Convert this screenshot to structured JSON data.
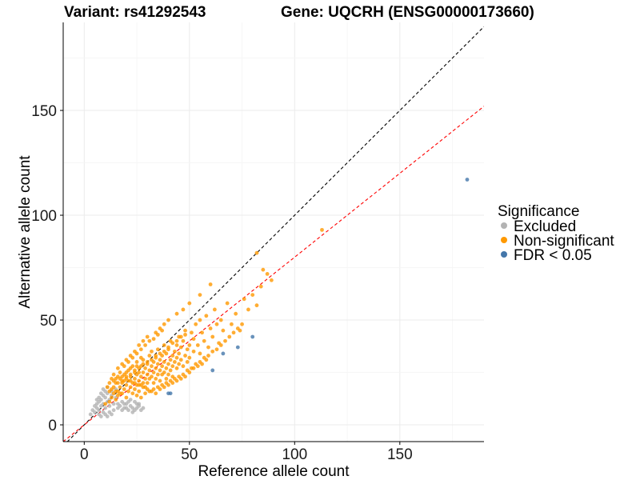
{
  "chart_data": {
    "type": "scatter",
    "title_left": "Variant: rs41292543",
    "title_right": "Gene: UQCRH (ENSG00000173660)",
    "xlabel": "Reference allele count",
    "ylabel": "Alternative allele count",
    "xlim": [
      -10,
      190
    ],
    "ylim": [
      -8,
      192
    ],
    "x_ticks": [
      0,
      50,
      100,
      150
    ],
    "y_ticks": [
      0,
      50,
      100,
      150
    ],
    "grid": true,
    "legend_position": "right",
    "legend": {
      "title": "Significance",
      "entries": [
        {
          "label": "Excluded",
          "color": "#b3b3b3"
        },
        {
          "label": "Non-significant",
          "color": "#ff9900"
        },
        {
          "label": "FDR < 0.05",
          "color": "#4477aa"
        }
      ]
    },
    "reference_lines": [
      {
        "name": "identity",
        "slope": 1.0,
        "intercept": 0,
        "color": "#000000",
        "style": "dashed"
      },
      {
        "name": "fit",
        "slope": 0.8,
        "intercept": 0,
        "color": "#ff0000",
        "style": "dashed"
      }
    ],
    "series": [
      {
        "name": "Excluded",
        "color": "#b3b3b3",
        "points": [
          [
            3,
            5
          ],
          [
            4,
            7
          ],
          [
            5,
            9
          ],
          [
            5,
            6
          ],
          [
            6,
            8
          ],
          [
            6,
            10
          ],
          [
            7,
            11
          ],
          [
            7,
            7
          ],
          [
            8,
            9
          ],
          [
            8,
            12
          ],
          [
            9,
            10
          ],
          [
            9,
            14
          ],
          [
            10,
            8
          ],
          [
            10,
            13
          ],
          [
            11,
            11
          ],
          [
            11,
            15
          ],
          [
            12,
            9
          ],
          [
            12,
            12
          ],
          [
            13,
            14
          ],
          [
            14,
            10
          ],
          [
            8,
            15
          ],
          [
            9,
            17
          ],
          [
            10,
            16
          ],
          [
            7,
            13
          ],
          [
            6,
            12
          ],
          [
            11,
            18
          ],
          [
            13,
            16
          ],
          [
            15,
            13
          ],
          [
            16,
            8
          ],
          [
            17,
            9
          ],
          [
            18,
            7
          ],
          [
            19,
            8
          ],
          [
            20,
            8
          ],
          [
            21,
            7
          ],
          [
            22,
            9
          ],
          [
            23,
            8
          ],
          [
            24,
            7
          ],
          [
            25,
            8
          ],
          [
            26,
            9
          ],
          [
            27,
            7
          ],
          [
            28,
            8
          ],
          [
            12,
            6
          ],
          [
            14,
            7
          ],
          [
            16,
            10
          ],
          [
            18,
            11
          ],
          [
            20,
            10
          ],
          [
            22,
            12
          ],
          [
            24,
            11
          ],
          [
            26,
            10
          ],
          [
            15,
            17
          ],
          [
            10,
            5
          ],
          [
            9,
            6
          ],
          [
            8,
            4
          ],
          [
            7,
            5
          ],
          [
            11,
            4
          ],
          [
            13,
            5
          ],
          [
            19,
            10
          ],
          [
            21,
            11
          ],
          [
            23,
            6
          ],
          [
            25,
            10
          ]
        ]
      },
      {
        "name": "Non-significant",
        "color": "#ff9900",
        "points": [
          [
            10,
            10
          ],
          [
            12,
            11
          ],
          [
            12,
            16
          ],
          [
            13,
            13
          ],
          [
            14,
            18
          ],
          [
            14,
            15
          ],
          [
            15,
            12
          ],
          [
            15,
            20
          ],
          [
            16,
            16
          ],
          [
            16,
            14
          ],
          [
            17,
            18
          ],
          [
            17,
            22
          ],
          [
            18,
            15
          ],
          [
            18,
            20
          ],
          [
            19,
            24
          ],
          [
            19,
            17
          ],
          [
            20,
            19
          ],
          [
            20,
            25
          ],
          [
            20,
            13
          ],
          [
            21,
            21
          ],
          [
            21,
            16
          ],
          [
            22,
            23
          ],
          [
            22,
            18
          ],
          [
            22,
            27
          ],
          [
            23,
            20
          ],
          [
            23,
            15
          ],
          [
            24,
            22
          ],
          [
            24,
            26
          ],
          [
            24,
            17
          ],
          [
            25,
            24
          ],
          [
            25,
            19
          ],
          [
            25,
            30
          ],
          [
            26,
            21
          ],
          [
            26,
            25
          ],
          [
            26,
            16
          ],
          [
            27,
            23
          ],
          [
            27,
            28
          ],
          [
            27,
            19
          ],
          [
            28,
            25
          ],
          [
            28,
            20
          ],
          [
            28,
            31
          ],
          [
            29,
            22
          ],
          [
            29,
            27
          ],
          [
            29,
            18
          ],
          [
            30,
            24
          ],
          [
            30,
            29
          ],
          [
            30,
            20
          ],
          [
            31,
            26
          ],
          [
            31,
            33
          ],
          [
            31,
            22
          ],
          [
            32,
            28
          ],
          [
            32,
            23
          ],
          [
            32,
            35
          ],
          [
            33,
            25
          ],
          [
            33,
            30
          ],
          [
            33,
            20
          ],
          [
            34,
            27
          ],
          [
            34,
            32
          ],
          [
            34,
            22
          ],
          [
            35,
            29
          ],
          [
            35,
            24
          ],
          [
            35,
            36
          ],
          [
            36,
            31
          ],
          [
            36,
            26
          ],
          [
            36,
            21
          ],
          [
            37,
            28
          ],
          [
            37,
            33
          ],
          [
            37,
            24
          ],
          [
            38,
            30
          ],
          [
            38,
            25
          ],
          [
            38,
            38
          ],
          [
            39,
            27
          ],
          [
            39,
            34
          ],
          [
            39,
            22
          ],
          [
            40,
            29
          ],
          [
            40,
            36
          ],
          [
            40,
            24
          ],
          [
            41,
            31
          ],
          [
            41,
            26
          ],
          [
            41,
            40
          ],
          [
            42,
            33
          ],
          [
            42,
            28
          ],
          [
            42,
            23
          ],
          [
            43,
            35
          ],
          [
            43,
            30
          ],
          [
            44,
            27
          ],
          [
            44,
            38
          ],
          [
            44,
            32
          ],
          [
            45,
            29
          ],
          [
            45,
            42
          ],
          [
            45,
            34
          ],
          [
            46,
            31
          ],
          [
            46,
            37
          ],
          [
            47,
            28
          ],
          [
            47,
            40
          ],
          [
            48,
            33
          ],
          [
            48,
            45
          ],
          [
            49,
            30
          ],
          [
            49,
            36
          ],
          [
            50,
            38
          ],
          [
            50,
            32
          ],
          [
            51,
            44
          ],
          [
            52,
            35
          ],
          [
            52,
            41
          ],
          [
            53,
            48
          ],
          [
            54,
            38
          ],
          [
            55,
            50
          ],
          [
            55,
            34
          ],
          [
            56,
            44
          ],
          [
            57,
            40
          ],
          [
            58,
            52
          ],
          [
            59,
            37
          ],
          [
            60,
            46
          ],
          [
            61,
            42
          ],
          [
            62,
            55
          ],
          [
            63,
            48
          ],
          [
            64,
            39
          ],
          [
            65,
            50
          ],
          [
            66,
            45
          ],
          [
            68,
            58
          ],
          [
            70,
            48
          ],
          [
            72,
            53
          ],
          [
            74,
            45
          ],
          [
            76,
            60
          ],
          [
            78,
            55
          ],
          [
            80,
            62
          ],
          [
            82,
            57
          ],
          [
            84,
            66
          ],
          [
            85,
            74
          ],
          [
            87,
            72
          ],
          [
            89,
            69
          ],
          [
            82,
            82
          ],
          [
            113,
            93
          ],
          [
            60,
            67
          ],
          [
            55,
            62
          ],
          [
            50,
            58
          ],
          [
            47,
            55
          ],
          [
            44,
            53
          ],
          [
            40,
            50
          ],
          [
            38,
            48
          ],
          [
            36,
            46
          ],
          [
            34,
            44
          ],
          [
            30,
            42
          ],
          [
            28,
            40
          ],
          [
            26,
            38
          ],
          [
            24,
            35
          ],
          [
            22,
            33
          ],
          [
            20,
            31
          ],
          [
            18,
            29
          ],
          [
            16,
            27
          ],
          [
            14,
            24
          ],
          [
            13,
            22
          ],
          [
            12,
            20
          ],
          [
            11,
            18
          ],
          [
            25,
            14
          ],
          [
            27,
            13
          ],
          [
            29,
            15
          ],
          [
            31,
            16
          ],
          [
            33,
            17
          ],
          [
            35,
            18
          ],
          [
            37,
            19
          ],
          [
            39,
            20
          ],
          [
            41,
            21
          ],
          [
            43,
            22
          ],
          [
            45,
            23
          ],
          [
            47,
            24
          ],
          [
            49,
            26
          ],
          [
            51,
            27
          ],
          [
            53,
            29
          ],
          [
            55,
            30
          ],
          [
            57,
            32
          ],
          [
            59,
            33
          ],
          [
            61,
            35
          ],
          [
            63,
            36
          ],
          [
            65,
            38
          ],
          [
            67,
            40
          ],
          [
            69,
            42
          ],
          [
            71,
            44
          ],
          [
            73,
            46
          ],
          [
            75,
            48
          ],
          [
            19,
            28
          ],
          [
            21,
            30
          ],
          [
            23,
            32
          ],
          [
            25,
            34
          ],
          [
            27,
            36
          ],
          [
            29,
            38
          ],
          [
            31,
            40
          ],
          [
            33,
            41
          ],
          [
            35,
            43
          ],
          [
            37,
            45
          ],
          [
            15,
            22
          ],
          [
            17,
            25
          ],
          [
            18,
            23
          ],
          [
            20,
            22
          ],
          [
            22,
            21
          ],
          [
            24,
            20
          ],
          [
            26,
            19
          ],
          [
            28,
            18
          ],
          [
            30,
            17
          ],
          [
            32,
            16
          ],
          [
            34,
            15
          ],
          [
            36,
            17
          ],
          [
            38,
            18
          ],
          [
            40,
            19
          ],
          [
            42,
            20
          ],
          [
            44,
            21
          ],
          [
            46,
            22
          ],
          [
            48,
            23
          ],
          [
            50,
            25
          ],
          [
            52,
            27
          ],
          [
            54,
            28
          ],
          [
            56,
            29
          ],
          [
            58,
            31
          ],
          [
            16,
            20
          ],
          [
            18,
            21
          ],
          [
            20,
            23
          ],
          [
            22,
            24
          ],
          [
            24,
            25
          ],
          [
            26,
            27
          ],
          [
            28,
            29
          ],
          [
            30,
            30
          ],
          [
            32,
            31
          ],
          [
            34,
            33
          ],
          [
            36,
            34
          ],
          [
            38,
            35
          ],
          [
            40,
            37
          ],
          [
            42,
            39
          ],
          [
            44,
            40
          ],
          [
            46,
            42
          ],
          [
            48,
            43
          ],
          [
            13,
            17
          ],
          [
            14,
            21
          ],
          [
            15,
            16
          ],
          [
            16,
            23
          ],
          [
            17,
            15
          ],
          [
            19,
            21
          ],
          [
            21,
            26
          ],
          [
            23,
            28
          ],
          [
            25,
            28
          ],
          [
            27,
            32
          ]
        ]
      },
      {
        "name": "FDR < 0.05",
        "color": "#4477aa",
        "points": [
          [
            182,
            117
          ],
          [
            80,
            42
          ],
          [
            73,
            37
          ],
          [
            66,
            34
          ],
          [
            61,
            26
          ],
          [
            40,
            15
          ],
          [
            41,
            15
          ]
        ]
      }
    ]
  }
}
